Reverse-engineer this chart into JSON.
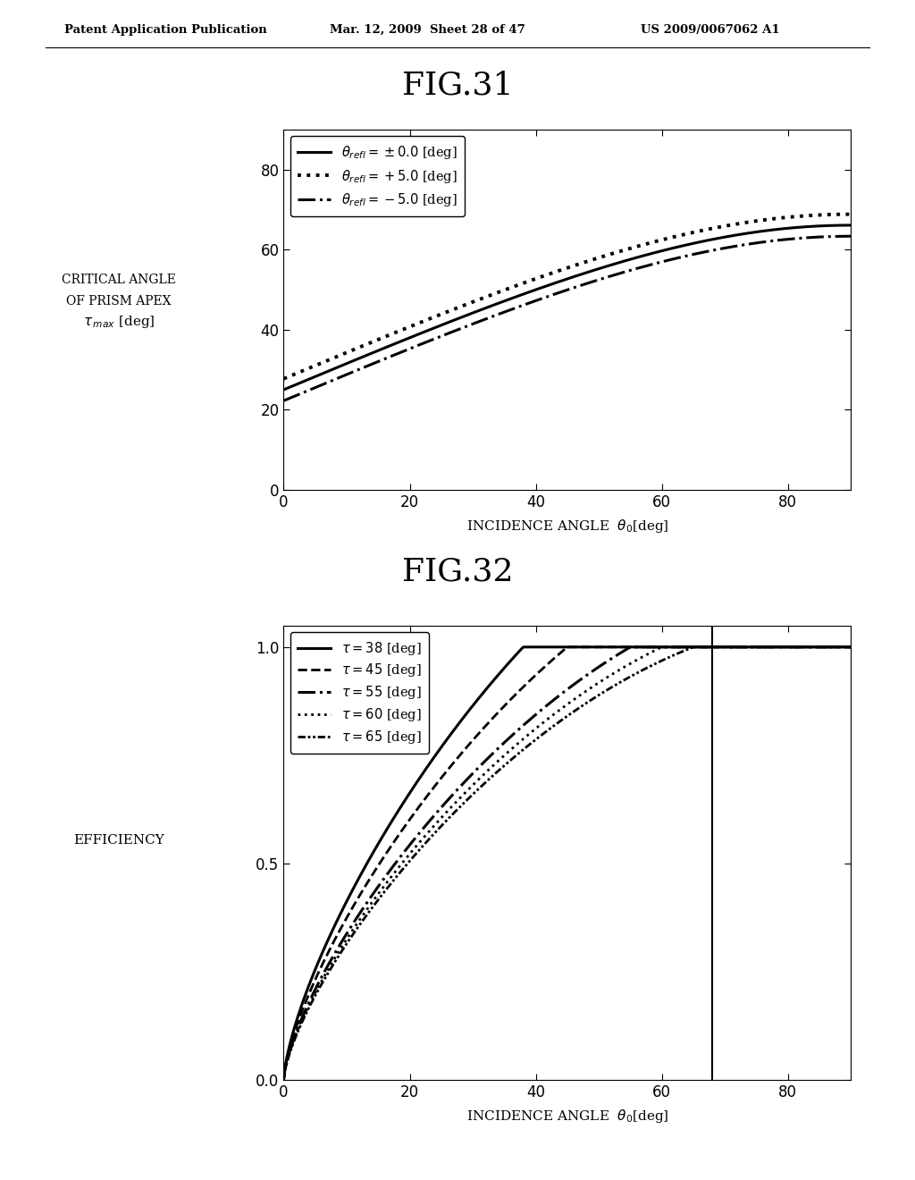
{
  "fig31_title": "FIG.31",
  "fig32_title": "FIG.32",
  "header_left": "Patent Application Publication",
  "header_mid": "Mar. 12, 2009  Sheet 28 of 47",
  "header_right": "US 2009/0067062 A1",
  "fig31": {
    "xlabel": "INCIDENCE ANGLE  $\\theta_0$[deg]",
    "xlim": [
      0,
      90
    ],
    "ylim": [
      0,
      90
    ],
    "xticks": [
      0,
      20,
      40,
      60,
      80
    ],
    "yticks": [
      0,
      20,
      40,
      60,
      80
    ]
  },
  "fig32": {
    "xlabel": "INCIDENCE ANGLE  $\\theta_0$[deg]",
    "xlim": [
      0,
      90
    ],
    "ylim": [
      0,
      1.05
    ],
    "xticks": [
      0,
      20,
      40,
      60,
      80
    ],
    "yticks": [
      0,
      0.5,
      1
    ],
    "vline_x": 68
  }
}
